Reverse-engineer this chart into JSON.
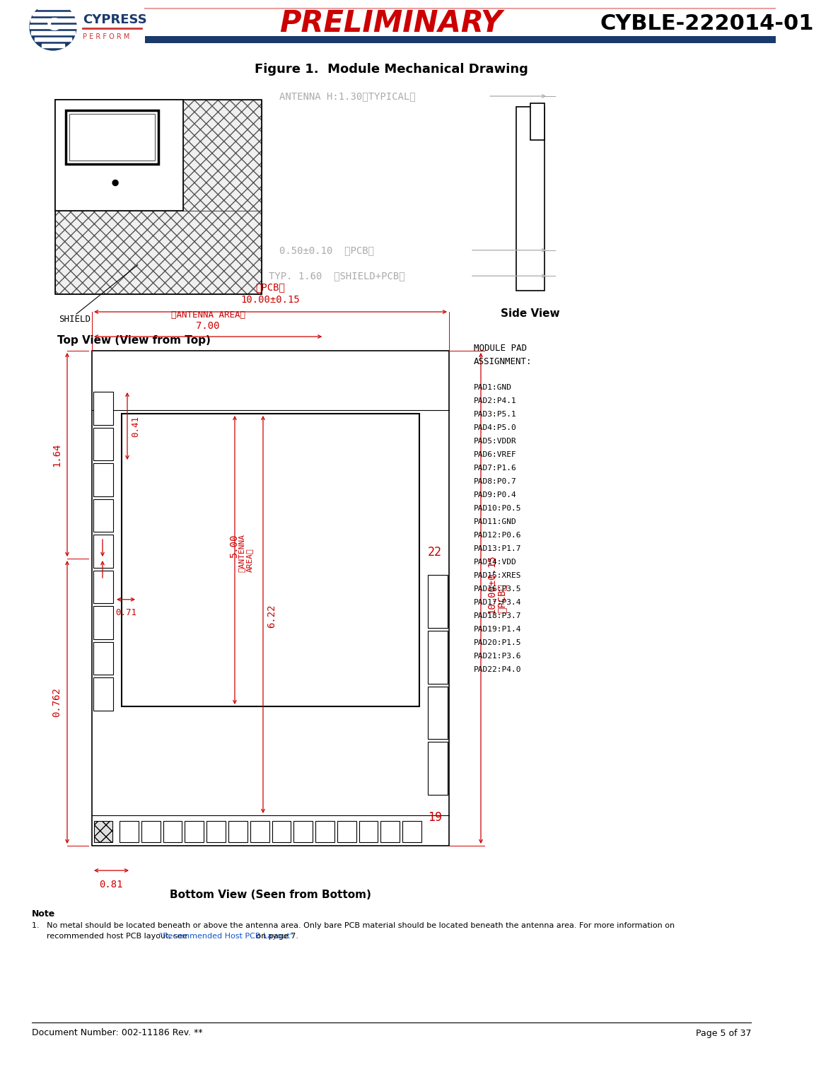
{
  "title_text": "Figure 1.  Module Mechanical Drawing",
  "header_preliminary": "PRELIMINARY",
  "header_part": "CYBLE-222014-01",
  "doc_number": "Document Number: 002-11186 Rev. **",
  "page": "Page 5 of 37",
  "top_view_label": "Top View (View from Top)",
  "bottom_view_label": "Bottom View (Seen from Bottom)",
  "side_view_label": "Side View",
  "note_title": "Note",
  "note_link_text": "Recommended Host PCB Layout",
  "header_line_color": "#1a3a6b",
  "background_color": "#ffffff",
  "drawing_line_color": "#000000",
  "dim_color": "#cc0000",
  "gray_color": "#aaaaaa",
  "pad_list": [
    "MODULE PAD",
    "ASSIGNMENT:",
    "",
    "PAD1:GND",
    "PAD2:P4.1",
    "PAD3:P5.1",
    "PAD4:P5.0",
    "PAD5:VDDR",
    "PAD6:VREF",
    "PAD7:P1.6",
    "PAD8:P0.7",
    "PAD9:P0.4",
    "PAD10:P0.5",
    "PAD11:GND",
    "PAD12:P0.6",
    "PAD13:P1.7",
    "PAD14:VDD",
    "PAD15:XRES",
    "PAD16:P3.5",
    "PAD17:P3.4",
    "PAD18:P3.7",
    "PAD19:P1.4",
    "PAD20:P1.5",
    "PAD21:P3.6",
    "PAD22:P4.0"
  ]
}
